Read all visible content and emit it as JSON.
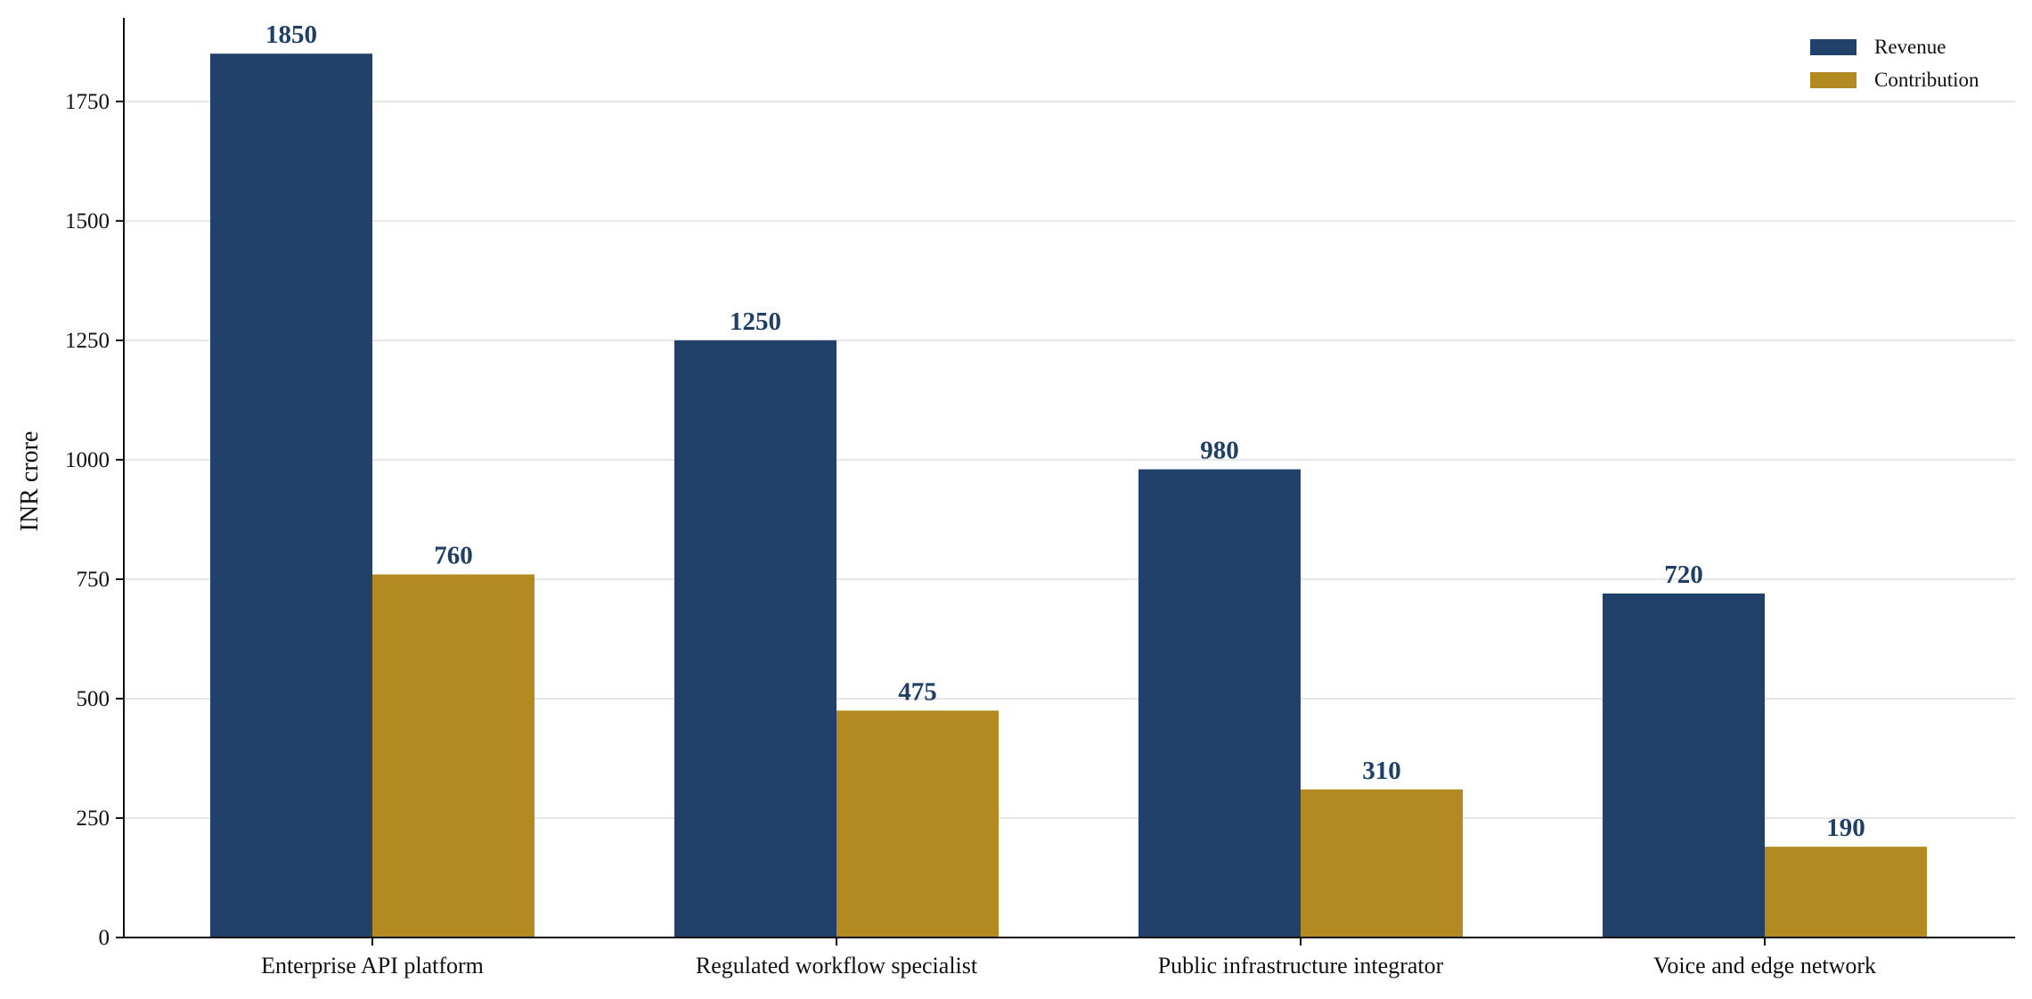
{
  "chart_data": {
    "type": "bar",
    "categories": [
      "Enterprise API platform",
      "Regulated workflow specialist",
      "Public infrastructure integrator",
      "Voice and edge network"
    ],
    "series": [
      {
        "name": "Revenue",
        "values": [
          1850,
          1250,
          980,
          720
        ],
        "color": "#21416b"
      },
      {
        "name": "Contribution",
        "values": [
          760,
          475,
          310,
          190
        ],
        "color": "#b38a22"
      }
    ],
    "title": "",
    "xlabel": "",
    "ylabel": "INR crore",
    "ylim": [
      0,
      1925
    ],
    "yticks": [
      0,
      250,
      500,
      750,
      1000,
      1250,
      1500,
      1750
    ],
    "grid": "horizontal",
    "legend": "top-right",
    "data_label_color": "#1f3f66"
  }
}
